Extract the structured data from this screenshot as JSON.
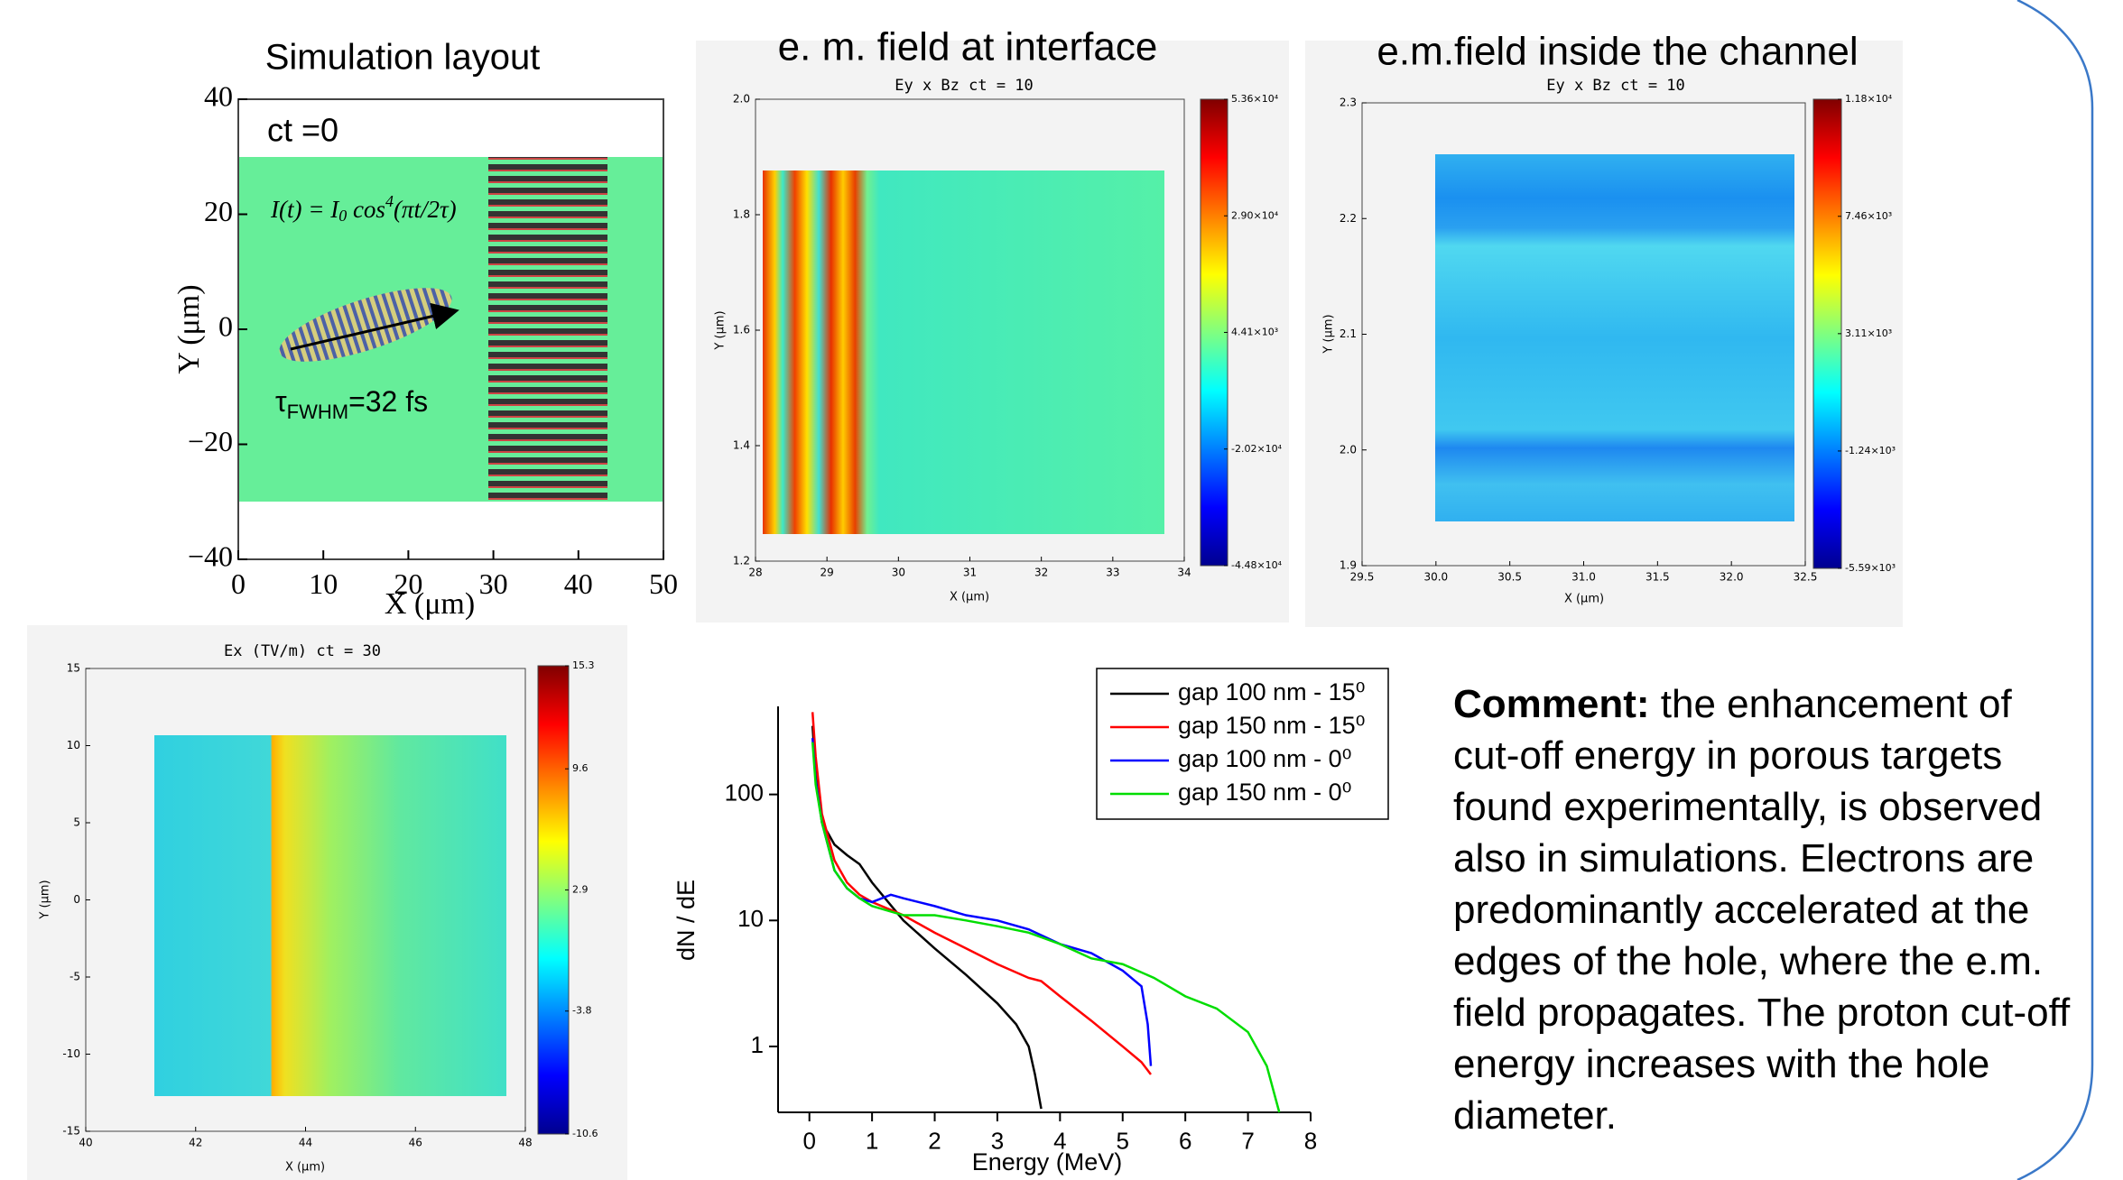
{
  "chart_data": [
    {
      "type": "layout",
      "title": "Simulation layout",
      "time_label": "ct =0",
      "formula": [
        "I(t) = I",
        "0",
        " cos",
        "4",
        "(πt/2τ)"
      ],
      "pulse_label": [
        "τ",
        "FWHM",
        "=32 fs"
      ],
      "xlabel": "X (μm)",
      "ylabel": "Y (μm)",
      "xlim": [
        0,
        50
      ],
      "xticks": [
        0,
        10,
        20,
        30,
        40,
        50
      ],
      "ylim": [
        -40,
        40
      ],
      "yticks": [
        {
          "value": -40,
          "label": "−40"
        },
        {
          "value": -20,
          "label": "−20"
        },
        0,
        20,
        40
      ]
    },
    {
      "type": "heatmap",
      "title": "e. m. field at interface",
      "subtitle": "Ey x Bz     ct = 10",
      "xlabel": "X (μm)",
      "ylabel": "Y (μm)",
      "xlim": [
        28,
        34
      ],
      "xticks": [
        28,
        29,
        30,
        31,
        32,
        33,
        34
      ],
      "ylim": [
        1.2,
        2.0
      ],
      "yticks": [
        1.2,
        1.4,
        1.6,
        1.8,
        {
          "value": 2.0,
          "label": "2.0"
        }
      ],
      "colorbar": {
        "lim": [
          -44800,
          53600
        ],
        "ticks": [
          {
            "value": 53600,
            "label": "5.36×10⁴"
          },
          {
            "value": 29000,
            "label": "2.90×10⁴"
          },
          {
            "value": 4410,
            "label": "4.41×10³"
          },
          {
            "value": -20200,
            "label": "-2.02×10⁴"
          },
          {
            "value": -44800,
            "label": "-4.48×10⁴"
          }
        ]
      }
    },
    {
      "type": "heatmap",
      "title": "e.m.field inside the channel",
      "subtitle": "Ey x Bz     ct = 10",
      "xlabel": "X (μm)",
      "ylabel": "Y (μm)",
      "xlim": [
        29.5,
        32.5
      ],
      "xticks": [
        29.5,
        {
          "value": 30.0,
          "label": "30.0"
        },
        30.5,
        {
          "value": 31.0,
          "label": "31.0"
        },
        31.5,
        {
          "value": 32.0,
          "label": "32.0"
        },
        32.5
      ],
      "ylim": [
        1.9,
        2.3
      ],
      "yticks": [
        1.9,
        {
          "value": 2.0,
          "label": "2.0"
        },
        2.1,
        2.2,
        2.3
      ],
      "colorbar": {
        "lim": [
          -5590,
          11800
        ],
        "ticks": [
          {
            "value": 11800,
            "label": "1.18×10⁴"
          },
          {
            "value": 7460,
            "label": "7.46×10³"
          },
          {
            "value": 3110,
            "label": "3.11×10³"
          },
          {
            "value": -1240,
            "label": "-1.24×10³"
          },
          {
            "value": -5590,
            "label": "-5.59×10³"
          }
        ]
      }
    },
    {
      "type": "heatmap",
      "subtitle": "Ex (TV/m)     ct = 30",
      "xlabel": "X (μm)",
      "ylabel": "Y (μm)",
      "xlim": [
        40,
        48
      ],
      "xticks": [
        40,
        42,
        44,
        46,
        48
      ],
      "ylim": [
        -15,
        15
      ],
      "yticks": [
        -15,
        -10,
        -5,
        0,
        5,
        10,
        15
      ],
      "colorbar": {
        "lim": [
          -10.6,
          15.3
        ],
        "ticks": [
          15.3,
          9.6,
          2.9,
          -3.8,
          -10.6
        ]
      }
    },
    {
      "type": "line",
      "xlabel": "Energy (MeV)",
      "ylabel": "dN / dE",
      "log_y": true,
      "xlim": [
        -0.5,
        8
      ],
      "xticks": [
        0,
        1,
        2,
        3,
        4,
        5,
        6,
        7,
        8
      ],
      "ylim": [
        0.3,
        500
      ],
      "yticks": [
        1,
        10,
        100
      ],
      "series": [
        {
          "name": "gap 100 nm - 15⁰",
          "color": "#000000",
          "x": [
            0.05,
            0.1,
            0.2,
            0.4,
            0.6,
            0.8,
            1,
            1.5,
            2,
            2.5,
            3,
            3.3,
            3.5,
            3.6,
            3.7
          ],
          "values": [
            350,
            150,
            60,
            40,
            33,
            28,
            20,
            10,
            6,
            3.7,
            2.2,
            1.5,
            1.0,
            0.6,
            0.32
          ]
        },
        {
          "name": "gap 150 nm - 15⁰",
          "color": "#ff0000",
          "x": [
            0.05,
            0.1,
            0.2,
            0.4,
            0.6,
            0.8,
            1,
            1.5,
            2,
            2.5,
            3,
            3.5,
            3.7,
            4,
            4.5,
            5,
            5.3,
            5.45
          ],
          "values": [
            450,
            200,
            70,
            30,
            20,
            16,
            14,
            11,
            8,
            6,
            4.5,
            3.5,
            3.3,
            2.5,
            1.6,
            1.0,
            0.75,
            0.6
          ]
        },
        {
          "name": "gap 100 nm - 0⁰",
          "color": "#0000ff",
          "x": [
            0.05,
            0.1,
            0.2,
            0.4,
            0.6,
            0.8,
            1,
            1.3,
            1.5,
            2,
            2.5,
            3,
            3.5,
            4,
            4.5,
            5,
            5.3,
            5.4,
            5.45
          ],
          "values": [
            280,
            130,
            60,
            25,
            18,
            15,
            14,
            16,
            15,
            13,
            11,
            10,
            8.5,
            6.5,
            5.5,
            4,
            3,
            1.5,
            0.7
          ]
        },
        {
          "name": "gap 150 nm - 0⁰",
          "color": "#00dd00",
          "x": [
            0.05,
            0.1,
            0.2,
            0.4,
            0.6,
            0.8,
            1,
            1.5,
            2,
            2.5,
            3,
            3.5,
            4,
            4.5,
            5,
            5.5,
            6,
            6.5,
            7,
            7.3,
            7.5
          ],
          "values": [
            260,
            120,
            60,
            25,
            18,
            15,
            13,
            11,
            11,
            10,
            9,
            8,
            6.5,
            5,
            4.5,
            3.5,
            2.5,
            2.0,
            1.3,
            0.7,
            0.3
          ]
        }
      ]
    }
  ],
  "comment": {
    "lead": "Comment:",
    "body": " the enhancement of cut-off energy in porous targets found experimentally, is observed also in simulations. Electrons are predominantly accelerated at the edges of the hole, where the e.m. field propagates. The proton cut-off energy increases with the hole diameter."
  }
}
